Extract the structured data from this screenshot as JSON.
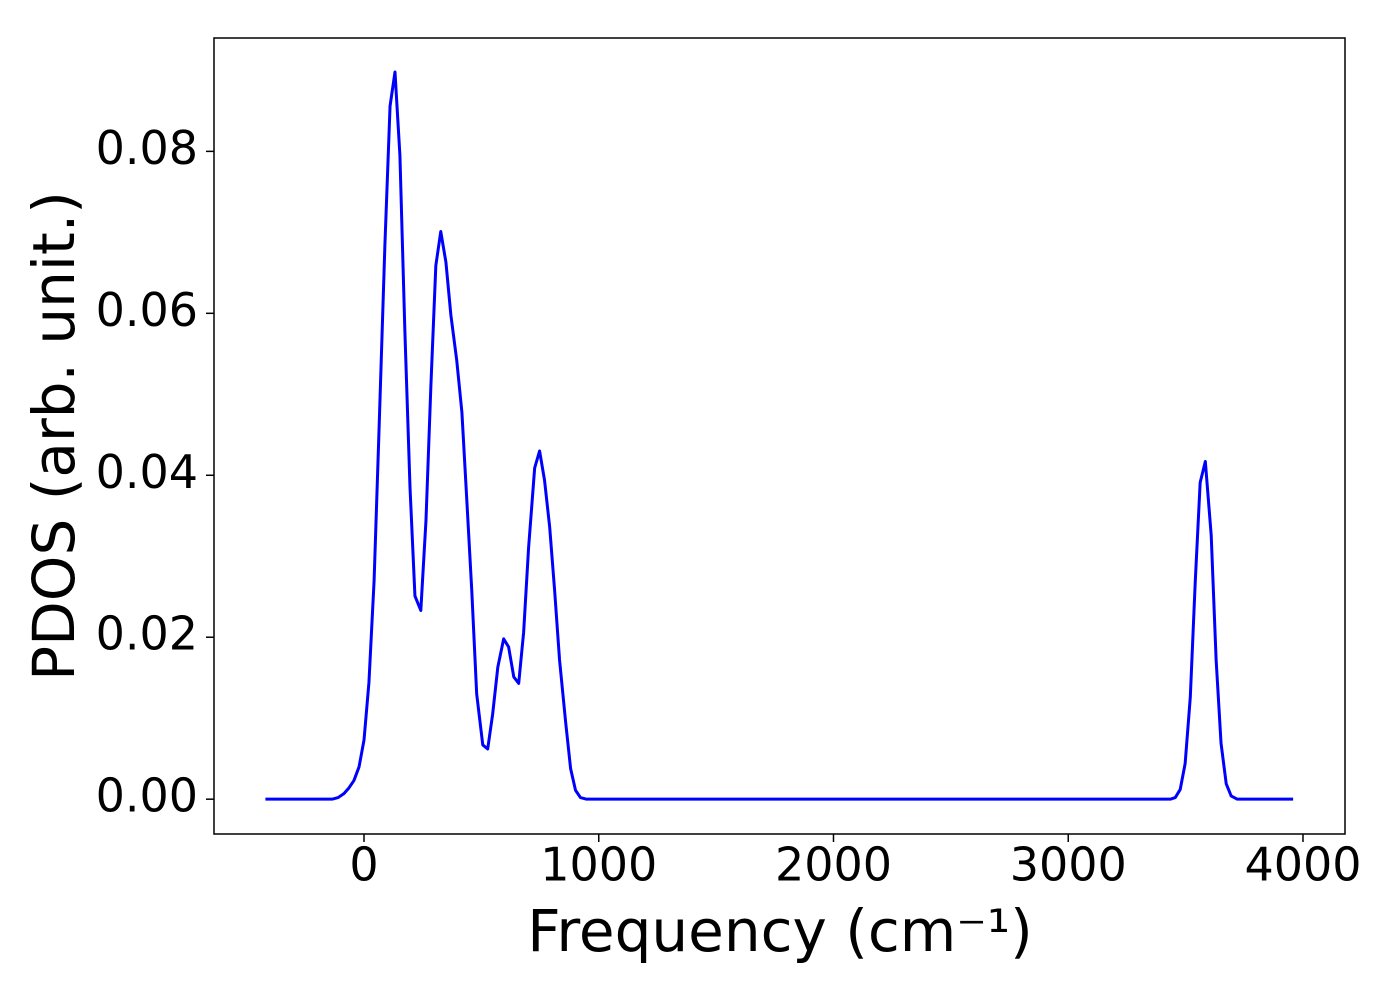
{
  "chart_data": {
    "type": "line",
    "xlabel": "Frequency (cm⁻¹)",
    "ylabel": "PDOS (arb. unit.)",
    "x": [
      -420,
      -136,
      -110,
      -85,
      -64,
      -43,
      -21,
      0,
      21,
      43,
      64,
      89,
      111,
      132,
      153,
      174,
      196,
      217,
      242,
      264,
      285,
      306,
      327,
      349,
      370,
      395,
      417,
      438,
      459,
      480,
      506,
      527,
      548,
      570,
      595,
      616,
      638,
      659,
      680,
      701,
      727,
      748,
      769,
      791,
      812,
      833,
      859,
      880,
      901,
      922,
      948,
      3435,
      3456,
      3477,
      3498,
      3520,
      3541,
      3562,
      3584,
      3609,
      3630,
      3651,
      3673,
      3694,
      3720,
      3958
    ],
    "series": [
      {
        "color": "#0000ff",
        "values": [
          0,
          0,
          0.0002,
          0.0007,
          0.0014,
          0.0023,
          0.004,
          0.0073,
          0.0144,
          0.027,
          0.0456,
          0.0684,
          0.0856,
          0.0898,
          0.0795,
          0.0579,
          0.0385,
          0.0251,
          0.0233,
          0.0344,
          0.0511,
          0.0659,
          0.0701,
          0.0663,
          0.0598,
          0.0542,
          0.0478,
          0.0369,
          0.0258,
          0.013,
          0.0067,
          0.0062,
          0.0105,
          0.0163,
          0.0198,
          0.0188,
          0.0151,
          0.0143,
          0.0206,
          0.031,
          0.0409,
          0.043,
          0.0394,
          0.0336,
          0.0258,
          0.0172,
          0.0095,
          0.0038,
          0.0011,
          0.0002,
          0,
          0,
          0.0002,
          0.0012,
          0.0044,
          0.0126,
          0.0268,
          0.0391,
          0.0417,
          0.0326,
          0.0172,
          0.0069,
          0.0019,
          0.0004,
          0,
          0
        ]
      }
    ],
    "xlim": [
      -639,
      4179
    ],
    "ylim": [
      -0.0043,
      0.094
    ],
    "xticks": [
      0,
      1000,
      2000,
      3000,
      4000
    ],
    "yticks": [
      {
        "value": 0,
        "label": "0.00"
      },
      {
        "value": 0.02,
        "label": "0.02"
      },
      {
        "value": 0.04,
        "label": "0.04"
      },
      {
        "value": 0.06,
        "label": "0.06"
      },
      {
        "value": 0.08,
        "label": "0.08"
      }
    ]
  }
}
